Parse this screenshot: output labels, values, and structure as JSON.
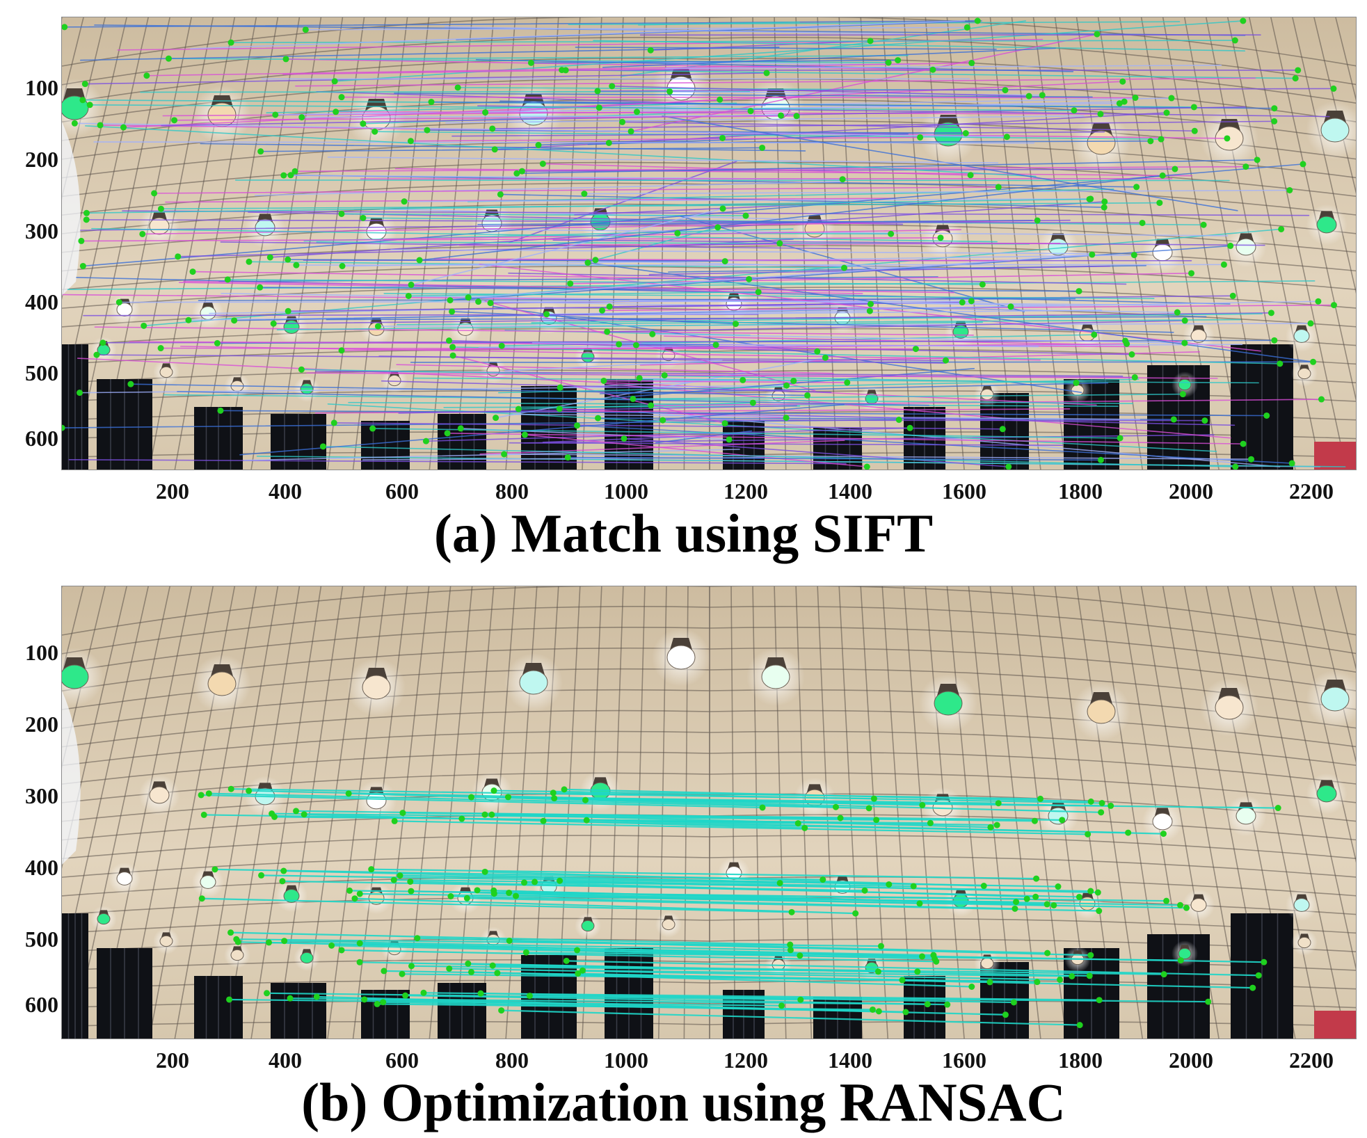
{
  "panels": [
    {
      "caption": "(a) Match using SIFT",
      "line_style": "multicolor",
      "y_ticks": [
        "100",
        "200",
        "300",
        "400",
        "500",
        "600"
      ],
      "x_ticks": [
        "200",
        "400",
        "600",
        "800",
        "1000",
        "1200",
        "1400",
        "1600",
        "1800",
        "2000",
        "2200"
      ]
    },
    {
      "caption": "(b) Optimization using RANSAC",
      "line_style": "cyan",
      "y_ticks": [
        "100",
        "200",
        "300",
        "400",
        "500",
        "600"
      ],
      "x_ticks": [
        "200",
        "400",
        "600",
        "800",
        "1000",
        "1200",
        "1400",
        "1600",
        "1800",
        "2000",
        "2200"
      ]
    }
  ],
  "colors": {
    "ceiling": "#d8c8ae",
    "grid": "#5a5048",
    "keypoint": "#1fd11f",
    "ransac_line": "#1fd6c8",
    "sift_lines": [
      "#3a6fd8",
      "#d84ed8",
      "#7a4fe0",
      "#2cc8c8",
      "#9fb0ff"
    ]
  }
}
